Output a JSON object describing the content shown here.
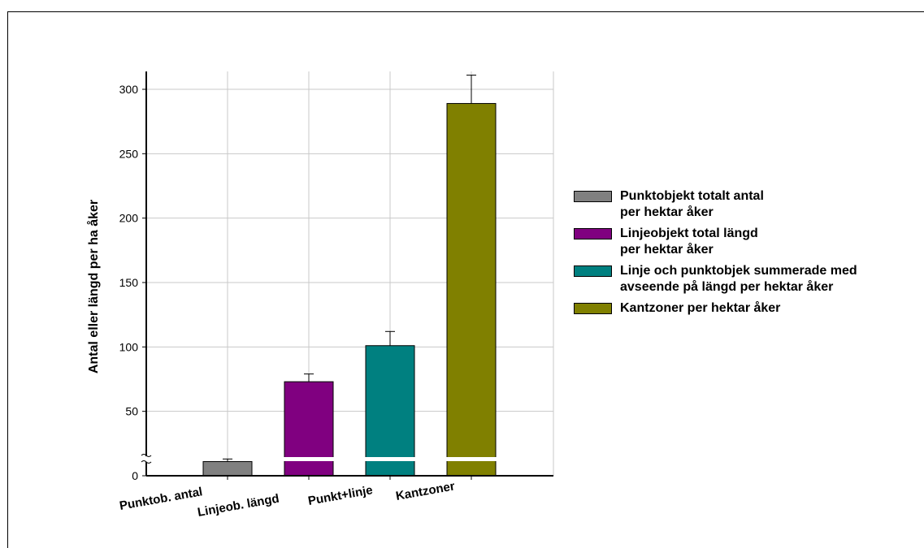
{
  "chart_data": {
    "type": "bar",
    "title": "",
    "xlabel": "",
    "ylabel": "Antal eller längd per ha åker",
    "ylim": [
      0,
      320
    ],
    "yticks": [
      0,
      50,
      100,
      150,
      200,
      250,
      300
    ],
    "grid": true,
    "axis_break": true,
    "legend_position": "right",
    "categories": [
      "Punktob. antal",
      "Linjeob. längd",
      "Punkt+linje",
      "Kantzoner"
    ],
    "values": [
      11,
      73,
      101,
      289
    ],
    "error_upper": [
      13,
      79,
      112,
      311
    ],
    "colors": [
      "#808080",
      "#800080",
      "#008080",
      "#808000"
    ],
    "legend": [
      "Punktobjekt totalt antal\nper hektar åker",
      "Linjeobjekt total längd\nper hektar åker",
      "Linje och punktobjek summerade med\navseende på  längd per hektar åker",
      "Kantzoner per hektar åker"
    ]
  }
}
